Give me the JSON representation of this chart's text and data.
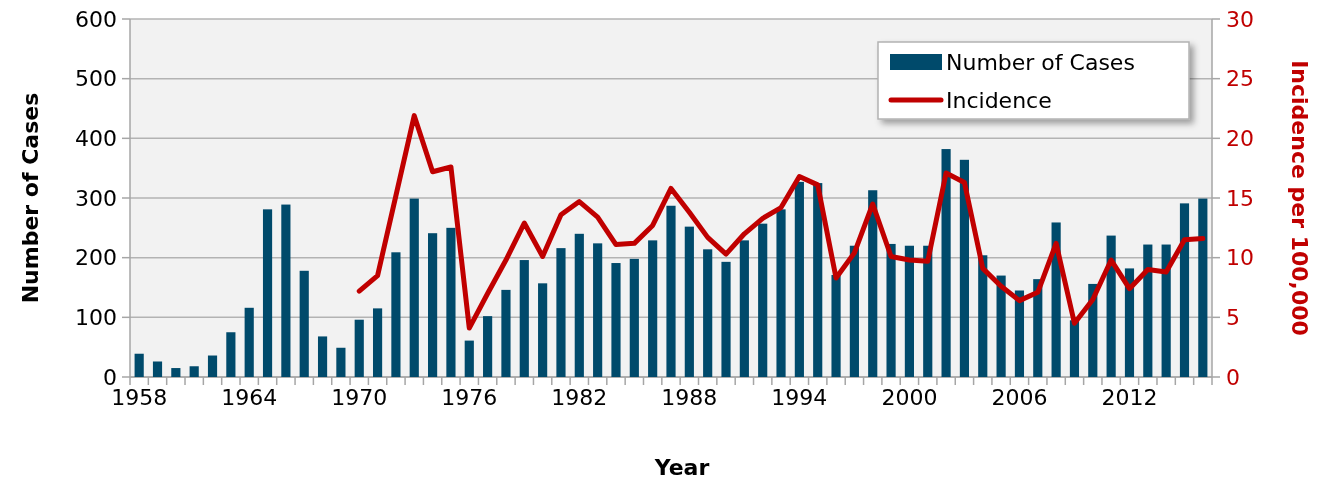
{
  "chart_data": {
    "type": "bar",
    "xlabel": "Year",
    "ylabel": "Number of Cases",
    "y2label": "Incidence per 100,000",
    "categories": [
      "1958",
      null,
      null,
      null,
      null,
      null,
      "1964",
      null,
      null,
      null,
      null,
      null,
      "1970",
      null,
      null,
      null,
      null,
      null,
      "1976",
      null,
      null,
      null,
      null,
      null,
      "1982",
      null,
      null,
      null,
      null,
      null,
      "1988",
      null,
      null,
      null,
      null,
      null,
      "1994",
      null,
      null,
      null,
      null,
      null,
      "2000",
      null,
      null,
      null,
      null,
      null,
      "2006",
      null,
      null,
      null,
      null,
      null,
      "2012",
      null,
      null,
      null,
      null
    ],
    "series": [
      {
        "name": "Number of Cases",
        "color": "#004a6b",
        "values": [
          39,
          26,
          15,
          18,
          36,
          75,
          116,
          281,
          289,
          178,
          68,
          49,
          96,
          115,
          209,
          299,
          241,
          250,
          61,
          102,
          146,
          196,
          157,
          216,
          240,
          224,
          191,
          198,
          229,
          287,
          252,
          214,
          193,
          229,
          257,
          281,
          327,
          325,
          171,
          220,
          313,
          223,
          220,
          220,
          382,
          364,
          204,
          170,
          145,
          164,
          259,
          95,
          156,
          237,
          182,
          222,
          222,
          291,
          299
        ]
      },
      {
        "name": "Incidence",
        "type": "line",
        "axis": "y2",
        "color": "#c00000",
        "values": [
          null,
          null,
          null,
          null,
          null,
          null,
          null,
          null,
          null,
          null,
          null,
          null,
          7.2,
          8.5,
          15.2,
          21.9,
          17.2,
          17.6,
          4.1,
          7.0,
          9.8,
          12.9,
          10.1,
          13.6,
          14.7,
          13.4,
          11.1,
          11.2,
          12.7,
          15.8,
          13.8,
          11.7,
          10.3,
          12.0,
          13.3,
          14.2,
          16.8,
          16.1,
          8.3,
          10.4,
          14.5,
          10.1,
          9.8,
          9.7,
          17.1,
          16.3,
          9.1,
          7.6,
          6.4,
          7.1,
          11.2,
          4.5,
          6.5,
          9.8,
          7.4,
          9.0,
          8.8,
          11.5,
          11.6
        ]
      }
    ],
    "ylim": [
      0,
      600
    ],
    "yticks": [
      0,
      100,
      200,
      300,
      400,
      500,
      600
    ],
    "y2lim": [
      0,
      30
    ],
    "y2ticks": [
      0,
      5,
      10,
      15,
      20,
      25,
      30
    ],
    "grid": "y",
    "legend": "top right",
    "marker": "none",
    "line_style": "solid"
  }
}
